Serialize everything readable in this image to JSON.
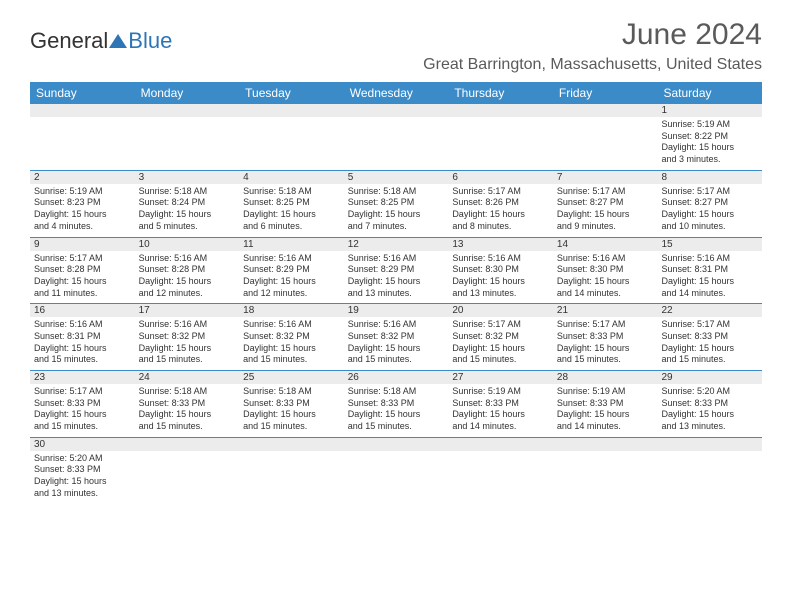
{
  "brand": {
    "part1": "General",
    "part2": "Blue"
  },
  "title": "June 2024",
  "location": "Great Barrington, Massachusetts, United States",
  "styling": {
    "header_bg": "#3b8bc9",
    "header_text": "#ffffff",
    "daynum_bg": "#ececec",
    "border_color": "#3b8bc9",
    "text_color": "#333333",
    "title_color": "#5a5a5a",
    "brand_accent": "#2e75b6",
    "body_font_size": 9,
    "title_font_size": 30,
    "location_font_size": 16,
    "header_font_size": 12
  },
  "day_headers": [
    "Sunday",
    "Monday",
    "Tuesday",
    "Wednesday",
    "Thursday",
    "Friday",
    "Saturday"
  ],
  "weeks": [
    [
      null,
      null,
      null,
      null,
      null,
      null,
      {
        "n": "1",
        "sr": "Sunrise: 5:19 AM",
        "ss": "Sunset: 8:22 PM",
        "d1": "Daylight: 15 hours",
        "d2": "and 3 minutes."
      }
    ],
    [
      {
        "n": "2",
        "sr": "Sunrise: 5:19 AM",
        "ss": "Sunset: 8:23 PM",
        "d1": "Daylight: 15 hours",
        "d2": "and 4 minutes."
      },
      {
        "n": "3",
        "sr": "Sunrise: 5:18 AM",
        "ss": "Sunset: 8:24 PM",
        "d1": "Daylight: 15 hours",
        "d2": "and 5 minutes."
      },
      {
        "n": "4",
        "sr": "Sunrise: 5:18 AM",
        "ss": "Sunset: 8:25 PM",
        "d1": "Daylight: 15 hours",
        "d2": "and 6 minutes."
      },
      {
        "n": "5",
        "sr": "Sunrise: 5:18 AM",
        "ss": "Sunset: 8:25 PM",
        "d1": "Daylight: 15 hours",
        "d2": "and 7 minutes."
      },
      {
        "n": "6",
        "sr": "Sunrise: 5:17 AM",
        "ss": "Sunset: 8:26 PM",
        "d1": "Daylight: 15 hours",
        "d2": "and 8 minutes."
      },
      {
        "n": "7",
        "sr": "Sunrise: 5:17 AM",
        "ss": "Sunset: 8:27 PM",
        "d1": "Daylight: 15 hours",
        "d2": "and 9 minutes."
      },
      {
        "n": "8",
        "sr": "Sunrise: 5:17 AM",
        "ss": "Sunset: 8:27 PM",
        "d1": "Daylight: 15 hours",
        "d2": "and 10 minutes."
      }
    ],
    [
      {
        "n": "9",
        "sr": "Sunrise: 5:17 AM",
        "ss": "Sunset: 8:28 PM",
        "d1": "Daylight: 15 hours",
        "d2": "and 11 minutes."
      },
      {
        "n": "10",
        "sr": "Sunrise: 5:16 AM",
        "ss": "Sunset: 8:28 PM",
        "d1": "Daylight: 15 hours",
        "d2": "and 12 minutes."
      },
      {
        "n": "11",
        "sr": "Sunrise: 5:16 AM",
        "ss": "Sunset: 8:29 PM",
        "d1": "Daylight: 15 hours",
        "d2": "and 12 minutes."
      },
      {
        "n": "12",
        "sr": "Sunrise: 5:16 AM",
        "ss": "Sunset: 8:29 PM",
        "d1": "Daylight: 15 hours",
        "d2": "and 13 minutes."
      },
      {
        "n": "13",
        "sr": "Sunrise: 5:16 AM",
        "ss": "Sunset: 8:30 PM",
        "d1": "Daylight: 15 hours",
        "d2": "and 13 minutes."
      },
      {
        "n": "14",
        "sr": "Sunrise: 5:16 AM",
        "ss": "Sunset: 8:30 PM",
        "d1": "Daylight: 15 hours",
        "d2": "and 14 minutes."
      },
      {
        "n": "15",
        "sr": "Sunrise: 5:16 AM",
        "ss": "Sunset: 8:31 PM",
        "d1": "Daylight: 15 hours",
        "d2": "and 14 minutes."
      }
    ],
    [
      {
        "n": "16",
        "sr": "Sunrise: 5:16 AM",
        "ss": "Sunset: 8:31 PM",
        "d1": "Daylight: 15 hours",
        "d2": "and 15 minutes."
      },
      {
        "n": "17",
        "sr": "Sunrise: 5:16 AM",
        "ss": "Sunset: 8:32 PM",
        "d1": "Daylight: 15 hours",
        "d2": "and 15 minutes."
      },
      {
        "n": "18",
        "sr": "Sunrise: 5:16 AM",
        "ss": "Sunset: 8:32 PM",
        "d1": "Daylight: 15 hours",
        "d2": "and 15 minutes."
      },
      {
        "n": "19",
        "sr": "Sunrise: 5:16 AM",
        "ss": "Sunset: 8:32 PM",
        "d1": "Daylight: 15 hours",
        "d2": "and 15 minutes."
      },
      {
        "n": "20",
        "sr": "Sunrise: 5:17 AM",
        "ss": "Sunset: 8:32 PM",
        "d1": "Daylight: 15 hours",
        "d2": "and 15 minutes."
      },
      {
        "n": "21",
        "sr": "Sunrise: 5:17 AM",
        "ss": "Sunset: 8:33 PM",
        "d1": "Daylight: 15 hours",
        "d2": "and 15 minutes."
      },
      {
        "n": "22",
        "sr": "Sunrise: 5:17 AM",
        "ss": "Sunset: 8:33 PM",
        "d1": "Daylight: 15 hours",
        "d2": "and 15 minutes."
      }
    ],
    [
      {
        "n": "23",
        "sr": "Sunrise: 5:17 AM",
        "ss": "Sunset: 8:33 PM",
        "d1": "Daylight: 15 hours",
        "d2": "and 15 minutes."
      },
      {
        "n": "24",
        "sr": "Sunrise: 5:18 AM",
        "ss": "Sunset: 8:33 PM",
        "d1": "Daylight: 15 hours",
        "d2": "and 15 minutes."
      },
      {
        "n": "25",
        "sr": "Sunrise: 5:18 AM",
        "ss": "Sunset: 8:33 PM",
        "d1": "Daylight: 15 hours",
        "d2": "and 15 minutes."
      },
      {
        "n": "26",
        "sr": "Sunrise: 5:18 AM",
        "ss": "Sunset: 8:33 PM",
        "d1": "Daylight: 15 hours",
        "d2": "and 15 minutes."
      },
      {
        "n": "27",
        "sr": "Sunrise: 5:19 AM",
        "ss": "Sunset: 8:33 PM",
        "d1": "Daylight: 15 hours",
        "d2": "and 14 minutes."
      },
      {
        "n": "28",
        "sr": "Sunrise: 5:19 AM",
        "ss": "Sunset: 8:33 PM",
        "d1": "Daylight: 15 hours",
        "d2": "and 14 minutes."
      },
      {
        "n": "29",
        "sr": "Sunrise: 5:20 AM",
        "ss": "Sunset: 8:33 PM",
        "d1": "Daylight: 15 hours",
        "d2": "and 13 minutes."
      }
    ],
    [
      {
        "n": "30",
        "sr": "Sunrise: 5:20 AM",
        "ss": "Sunset: 8:33 PM",
        "d1": "Daylight: 15 hours",
        "d2": "and 13 minutes."
      },
      null,
      null,
      null,
      null,
      null,
      null
    ]
  ]
}
